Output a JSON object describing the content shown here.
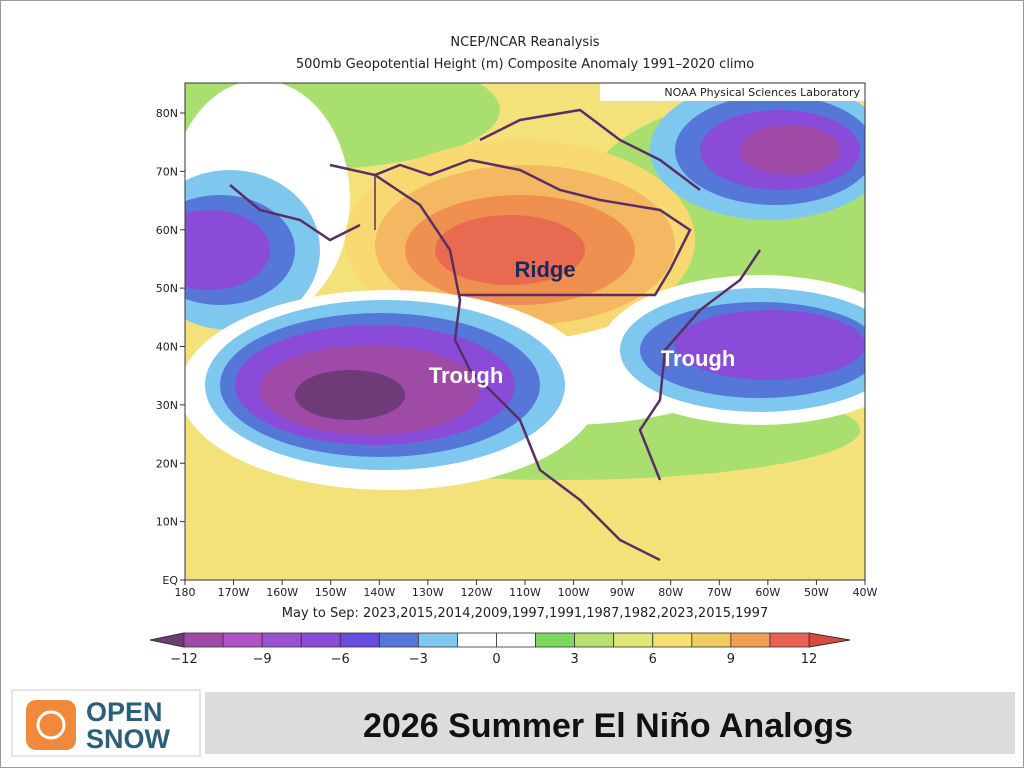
{
  "header": {
    "title": "NCEP/NCAR Reanalysis",
    "subtitle": "500mb Geopotential Height (m) Composite Anomaly 1991–2020 climo",
    "credit": "NOAA Physical Sciences Laboratory"
  },
  "map": {
    "lat_labels": [
      "80N",
      "70N",
      "60N",
      "50N",
      "40N",
      "30N",
      "20N",
      "10N",
      "EQ"
    ],
    "lon_labels": [
      "180",
      "170W",
      "160W",
      "150W",
      "140W",
      "130W",
      "120W",
      "110W",
      "100W",
      "90W",
      "80W",
      "70W",
      "60W",
      "50W",
      "40W"
    ],
    "annotations": [
      "Ridge",
      "Trough",
      "Trough"
    ],
    "caption": "May to Sep: 2023,2015,2014,2009,1997,1991,1987,1982,2023,2015,1997"
  },
  "colorbar": {
    "labels": [
      "−12",
      "−9",
      "−6",
      "−3",
      "0",
      "3",
      "6",
      "9",
      "12"
    ]
  },
  "footer": {
    "logo": [
      "OPEN",
      "SNOW"
    ],
    "title": "2026 Summer El Niño Analogs"
  }
}
